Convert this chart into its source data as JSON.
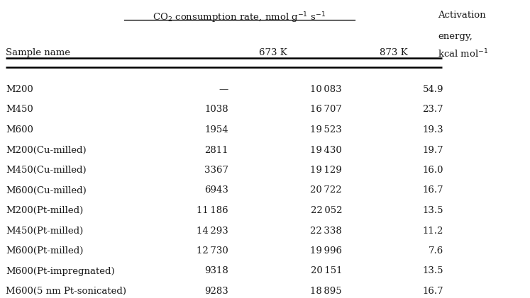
{
  "rows": [
    [
      "M200",
      "—",
      "10 083",
      "54.9"
    ],
    [
      "M450",
      "1038",
      "16 707",
      "23.7"
    ],
    [
      "M600",
      "1954",
      "19 523",
      "19.3"
    ],
    [
      "M200(Cu-milled)",
      "2811",
      "19 430",
      "19.7"
    ],
    [
      "M450(Cu-milled)",
      "3367",
      "19 129",
      "16.0"
    ],
    [
      "M600(Cu-milled)",
      "6943",
      "20 722",
      "16.7"
    ],
    [
      "M200(Pt-milled)",
      "11 186",
      "22 052",
      "13.5"
    ],
    [
      "M450(Pt-milled)",
      "14 293",
      "22 338",
      "11.2"
    ],
    [
      "M600(Pt-milled)",
      "12 730",
      "19 996",
      "7.6"
    ],
    [
      "M600(Pt-impregnated)",
      "9318",
      "20 151",
      "13.5"
    ],
    [
      "M600(5 nm Pt-sonicated)",
      "9283",
      "18 895",
      "16.7"
    ]
  ],
  "bg_color": "#ffffff",
  "text_color": "#1a1a1a",
  "font_size": 9.5
}
